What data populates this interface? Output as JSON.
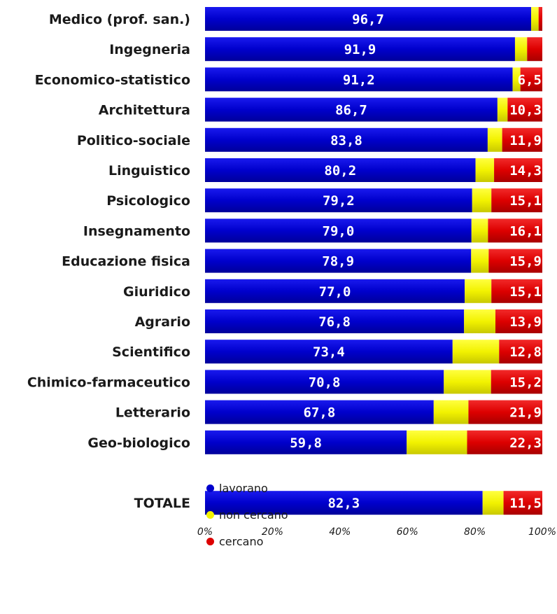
{
  "chart_data": {
    "type": "bar",
    "orientation": "horizontal",
    "stacked": true,
    "percent": true,
    "categories": [
      "Medico (prof. san.)",
      "Ingegneria",
      "Economico-statistico",
      "Architettura",
      "Politico-sociale",
      "Linguistico",
      "Psicologico",
      "Insegnamento",
      "Educazione fisica",
      "Giuridico",
      "Agrario",
      "Scientifico",
      "Chimico-farmaceutico",
      "Letterario",
      "Geo-biologico",
      "",
      "TOTALE"
    ],
    "series": [
      {
        "name": "lavorano",
        "color": "#0000cc",
        "values": [
          96.7,
          91.9,
          91.2,
          86.7,
          83.8,
          80.2,
          79.2,
          79.0,
          78.9,
          77.0,
          76.8,
          73.4,
          70.8,
          67.8,
          59.8,
          null,
          82.3
        ],
        "labels": [
          "96,7",
          "91,9",
          "91,2",
          "86,7",
          "83,8",
          "80,2",
          "79,2",
          "79,0",
          "78,9",
          "77,0",
          "76,8",
          "73,4",
          "70,8",
          "67,8",
          "59,8",
          "",
          "82,3"
        ]
      },
      {
        "name": "non cercano",
        "color": "#f2f200",
        "values": [
          2.2,
          3.6,
          2.3,
          3.0,
          4.3,
          5.5,
          5.7,
          4.9,
          5.2,
          7.9,
          9.3,
          13.8,
          14.0,
          10.3,
          17.9,
          null,
          6.2
        ],
        "labels": [
          "",
          "",
          "",
          "",
          "",
          "",
          "",
          "",
          "",
          "",
          "",
          "",
          "",
          "",
          "",
          "",
          ""
        ]
      },
      {
        "name": "cercano",
        "color": "#dd0000",
        "values": [
          1.1,
          4.5,
          6.5,
          10.3,
          11.9,
          14.3,
          15.1,
          16.1,
          15.9,
          15.1,
          13.9,
          12.8,
          15.2,
          21.9,
          22.3,
          null,
          11.5
        ],
        "labels": [
          "",
          "",
          "6,5",
          "10,3",
          "11,9",
          "14,3",
          "15,1",
          "16,1",
          "15,9",
          "15,1",
          "13,9",
          "12,8",
          "15,2",
          "21,9",
          "22,3",
          "",
          "11,5"
        ]
      }
    ],
    "x_ticks": [
      "0%",
      "20%",
      "40%",
      "60%",
      "80%",
      "100%"
    ],
    "xlim": [
      0,
      100
    ],
    "grid": false,
    "legend_position": "bottom"
  }
}
